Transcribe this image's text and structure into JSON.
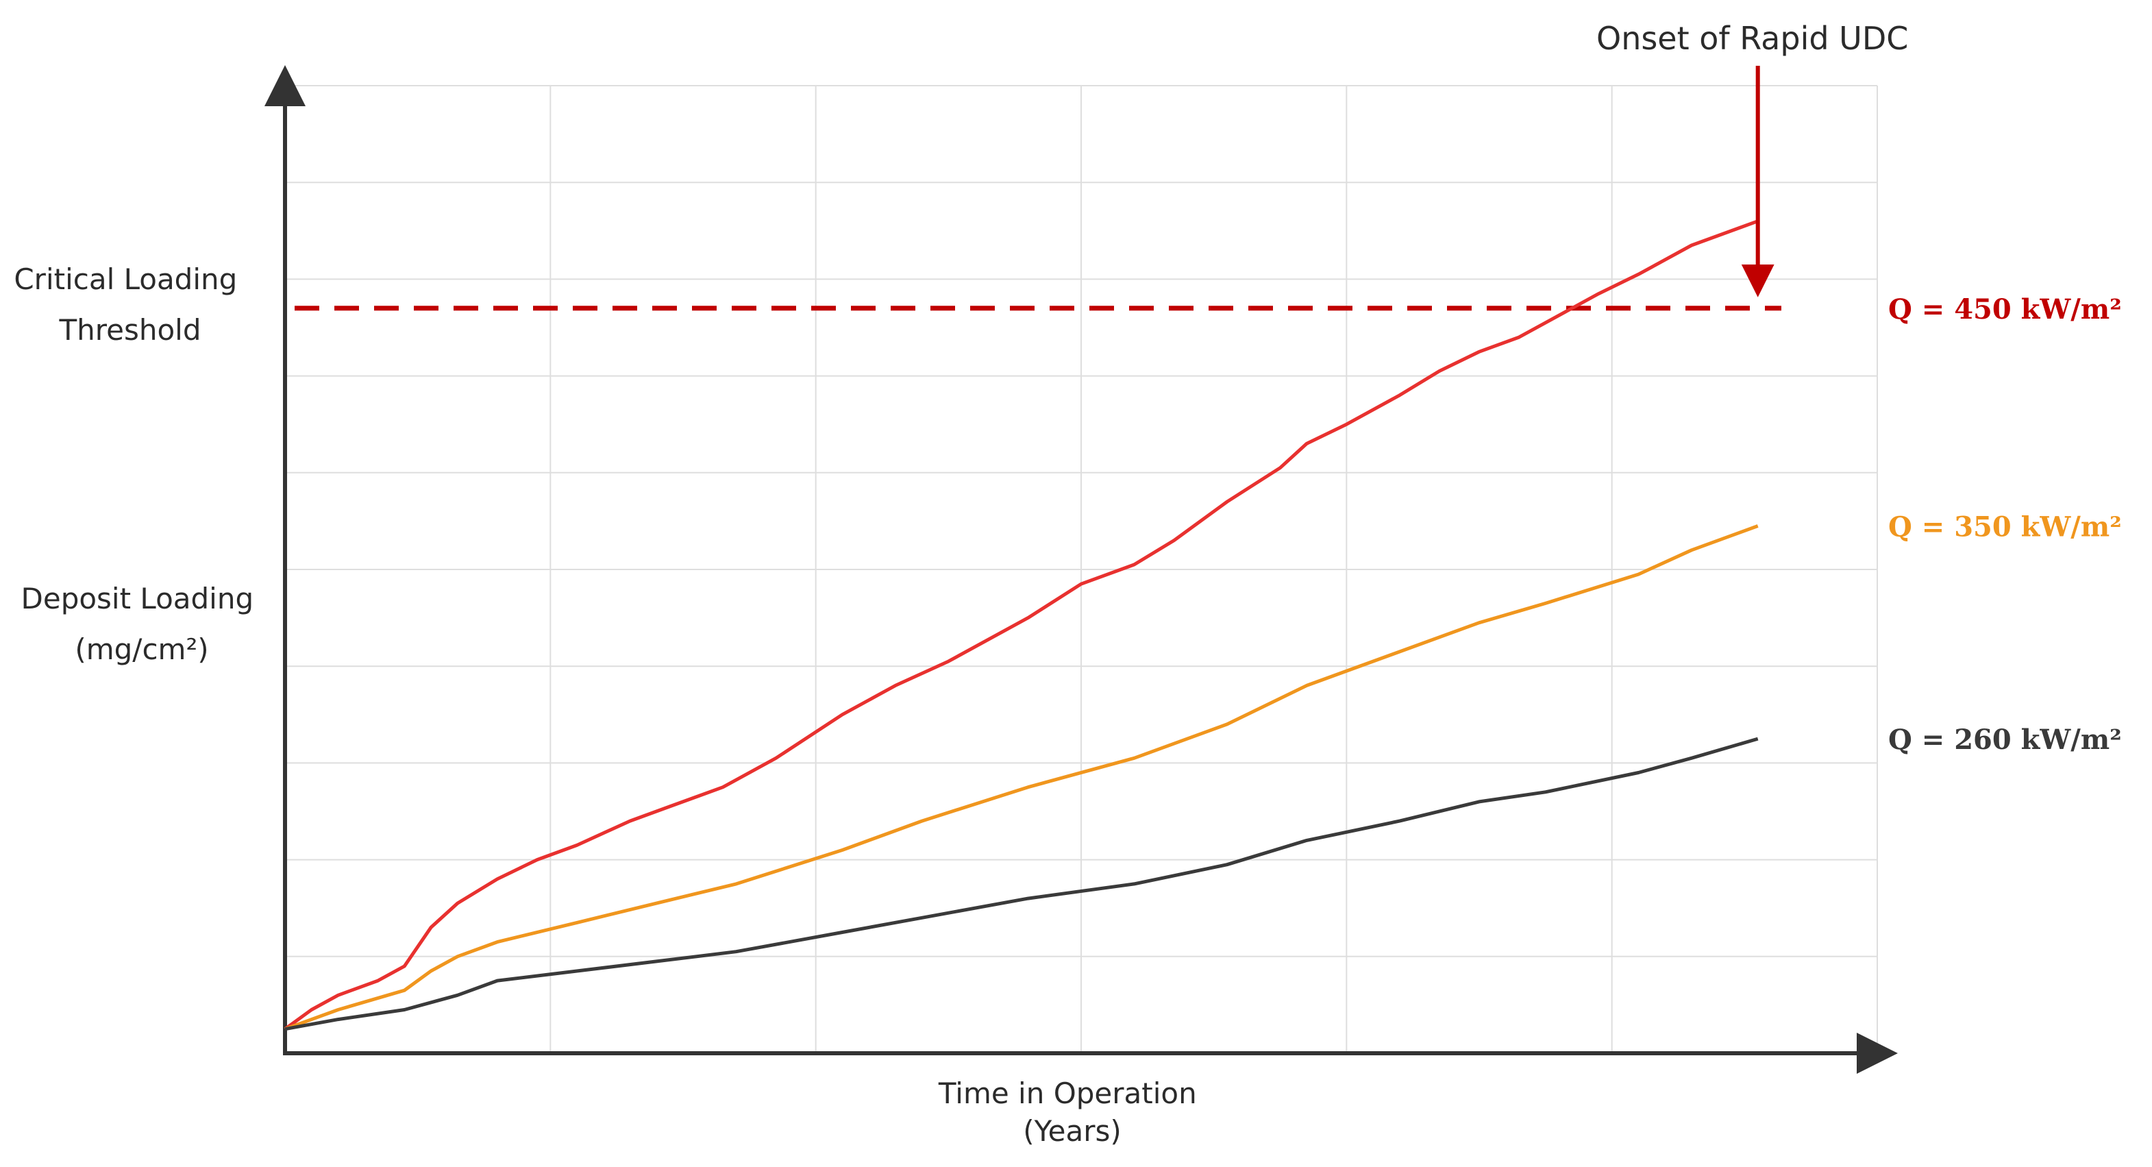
{
  "chart_data": {
    "type": "line",
    "title": "",
    "xlabel": [
      "Time in Operation",
      "(Years)"
    ],
    "ylabel": [
      "Deposit Loading",
      "(mg/cm²)"
    ],
    "xlim": [
      0,
      6
    ],
    "ylim": [
      0,
      10
    ],
    "grid": true,
    "legend": "right-of-plot, inline labels at line ends",
    "threshold": {
      "label": [
        "Critical Loading",
        "Threshold"
      ],
      "value": 7.7,
      "color": "#c00000",
      "style": "dashed"
    },
    "annotation": {
      "text": "Onset of Rapid UDC",
      "points_to": {
        "x": 5.55,
        "y": 7.7
      },
      "color": "#c00000"
    },
    "series": [
      {
        "name": "Q = 450 kW/m²",
        "color": "#e8312f",
        "x": [
          0,
          0.1,
          0.2,
          0.35,
          0.45,
          0.55,
          0.65,
          0.8,
          0.95,
          1.1,
          1.3,
          1.45,
          1.65,
          1.85,
          2.1,
          2.3,
          2.5,
          2.8,
          3.0,
          3.2,
          3.35,
          3.55,
          3.75,
          3.85,
          4.0,
          4.2,
          4.35,
          4.5,
          4.65,
          4.75,
          4.95,
          5.1,
          5.3,
          5.55
        ],
        "y": [
          0.25,
          0.45,
          0.6,
          0.75,
          0.9,
          1.3,
          1.55,
          1.8,
          2.0,
          2.15,
          2.4,
          2.55,
          2.75,
          3.05,
          3.5,
          3.8,
          4.05,
          4.5,
          4.85,
          5.05,
          5.3,
          5.7,
          6.05,
          6.3,
          6.5,
          6.8,
          7.05,
          7.25,
          7.4,
          7.55,
          7.85,
          8.05,
          8.35,
          8.6
        ]
      },
      {
        "name": "Q = 350 kW/m²",
        "color": "#f0961e",
        "x": [
          0,
          0.2,
          0.45,
          0.55,
          0.65,
          0.8,
          1.1,
          1.4,
          1.7,
          2.1,
          2.4,
          2.8,
          3.2,
          3.55,
          3.85,
          4.2,
          4.5,
          4.75,
          5.1,
          5.3,
          5.55
        ],
        "y": [
          0.25,
          0.45,
          0.65,
          0.85,
          1.0,
          1.15,
          1.35,
          1.55,
          1.75,
          2.1,
          2.4,
          2.75,
          3.05,
          3.4,
          3.8,
          4.15,
          4.45,
          4.65,
          4.95,
          5.2,
          5.45
        ]
      },
      {
        "name": "Q = 260 kW/m²",
        "color": "#3a3a3a",
        "x": [
          0,
          0.2,
          0.45,
          0.65,
          0.8,
          1.1,
          1.4,
          1.7,
          2.1,
          2.4,
          2.8,
          3.2,
          3.55,
          3.85,
          4.2,
          4.5,
          4.75,
          5.1,
          5.3,
          5.55
        ],
        "y": [
          0.25,
          0.35,
          0.45,
          0.6,
          0.75,
          0.85,
          0.95,
          1.05,
          1.25,
          1.4,
          1.6,
          1.75,
          1.95,
          2.2,
          2.4,
          2.6,
          2.7,
          2.9,
          3.05,
          3.25
        ]
      }
    ]
  }
}
